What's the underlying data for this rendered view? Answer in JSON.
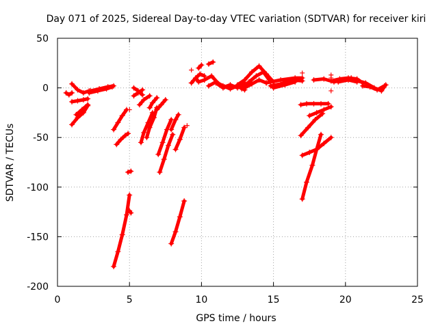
{
  "chart_data": {
    "type": "scatter",
    "title": "Day 071 of 2025, Sidereal Day-to-day VTEC variation (SDTVAR) for receiver kiri",
    "xlabel": "GPS time / hours",
    "ylabel": "SDTVAR / TECUs",
    "xlim": [
      0,
      25
    ],
    "ylim": [
      -200,
      50
    ],
    "x_ticks": [
      0,
      5,
      10,
      15,
      20,
      25
    ],
    "y_ticks": [
      -200,
      -150,
      -100,
      -50,
      0,
      50
    ],
    "grid": true,
    "marker": "plus",
    "series_color": "#ff0000",
    "segments": [
      {
        "x": [
          0.6,
          0.8,
          1.0
        ],
        "y": [
          -5,
          -7,
          -5
        ]
      },
      {
        "x": [
          1.0,
          1.4,
          1.8,
          2.2
        ],
        "y": [
          4,
          -2,
          -5,
          -3
        ]
      },
      {
        "x": [
          1.0,
          1.4,
          1.8,
          2.1
        ],
        "y": [
          -14,
          -13,
          -12,
          -11
        ]
      },
      {
        "x": [
          1.0,
          1.4,
          1.8,
          2.1
        ],
        "y": [
          -37,
          -30,
          -25,
          -18
        ]
      },
      {
        "x": [
          1.3,
          1.7,
          2.1
        ],
        "y": [
          -27,
          -22,
          -17
        ]
      },
      {
        "x": [
          2.2,
          2.8,
          3.4,
          3.8
        ],
        "y": [
          -5,
          -3,
          -1,
          1
        ]
      },
      {
        "x": [
          2.3,
          2.9,
          3.5,
          3.9
        ],
        "y": [
          -3,
          -1,
          1,
          2
        ]
      },
      {
        "x": [
          3.9,
          4.2,
          4.5,
          4.8
        ],
        "y": [
          -42,
          -35,
          -28,
          -22
        ]
      },
      {
        "x": [
          4.1,
          4.4,
          4.7,
          4.9
        ],
        "y": [
          -57,
          -52,
          -48,
          -46
        ]
      },
      {
        "x": [
          3.9,
          4.2,
          4.5,
          4.8,
          5.0
        ],
        "y": [
          -180,
          -165,
          -148,
          -128,
          -108
        ]
      },
      {
        "x": [
          4.9,
          5.1
        ],
        "y": [
          -85,
          -84
        ]
      },
      {
        "x": [
          5.0,
          5.1
        ],
        "y": [
          -124,
          -126
        ]
      },
      {
        "x": [
          5.3,
          5.6,
          5.9
        ],
        "y": [
          0,
          -3,
          -7
        ]
      },
      {
        "x": [
          5.3,
          5.6,
          5.9
        ],
        "y": [
          -8,
          -5,
          -2
        ]
      },
      {
        "x": [
          5.7,
          6.0,
          6.4
        ],
        "y": [
          -17,
          -12,
          -8
        ]
      },
      {
        "x": [
          5.8,
          6.0,
          6.3,
          6.6
        ],
        "y": [
          -55,
          -45,
          -35,
          -25
        ]
      },
      {
        "x": [
          6.2,
          6.4,
          6.7,
          6.9
        ],
        "y": [
          -50,
          -40,
          -30,
          -20
        ]
      },
      {
        "x": [
          6.4,
          6.6,
          6.9
        ],
        "y": [
          -20,
          -15,
          -10
        ]
      },
      {
        "x": [
          6.9,
          7.2,
          7.5
        ],
        "y": [
          -22,
          -17,
          -12
        ]
      },
      {
        "x": [
          7.0,
          7.3,
          7.6,
          7.9
        ],
        "y": [
          -67,
          -55,
          -42,
          -32
        ]
      },
      {
        "x": [
          7.1,
          7.4,
          7.7,
          8.0
        ],
        "y": [
          -85,
          -72,
          -58,
          -47
        ]
      },
      {
        "x": [
          7.9,
          8.2,
          8.4
        ],
        "y": [
          -42,
          -32,
          -27
        ]
      },
      {
        "x": [
          8.2,
          8.5,
          8.8
        ],
        "y": [
          -62,
          -52,
          -40
        ]
      },
      {
        "x": [
          7.9,
          8.2,
          8.5,
          8.8
        ],
        "y": [
          -157,
          -145,
          -130,
          -114
        ]
      },
      {
        "x": [
          9.3,
          9.6,
          9.8,
          10.2
        ],
        "y": [
          5,
          10,
          6,
          8
        ]
      },
      {
        "x": [
          9.6,
          9.9,
          10.2
        ],
        "y": [
          10,
          14,
          12
        ]
      },
      {
        "x": [
          9.8,
          10.0
        ],
        "y": [
          20,
          23
        ]
      },
      {
        "x": [
          10.5,
          10.8
        ],
        "y": [
          24,
          26
        ]
      },
      {
        "x": [
          10.2,
          10.7,
          11.2,
          11.6,
          12.0,
          12.5,
          13.0
        ],
        "y": [
          8,
          12,
          4,
          1,
          3,
          0,
          5
        ]
      },
      {
        "x": [
          10.5,
          11.0,
          11.5,
          12.0,
          12.5,
          13.0
        ],
        "y": [
          2,
          6,
          2,
          -1,
          2,
          -2
        ]
      },
      {
        "x": [
          11.0,
          11.5,
          12.0
        ],
        "y": [
          5,
          0,
          3
        ]
      },
      {
        "x": [
          12.5,
          13.0,
          13.5,
          14.0,
          14.5,
          15.0
        ],
        "y": [
          3,
          8,
          16,
          22,
          14,
          6
        ]
      },
      {
        "x": [
          12.8,
          13.3,
          13.8,
          14.3,
          14.8
        ],
        "y": [
          -1,
          6,
          12,
          16,
          6
        ]
      },
      {
        "x": [
          13.0,
          13.5,
          14.0,
          14.5
        ],
        "y": [
          0,
          4,
          8,
          5
        ]
      },
      {
        "x": [
          14.5,
          15.5,
          16.5,
          17.0
        ],
        "y": [
          5,
          8,
          10,
          10
        ]
      },
      {
        "x": [
          14.8,
          15.5,
          16.3,
          17.0
        ],
        "y": [
          2,
          4,
          8,
          7
        ]
      },
      {
        "x": [
          15.0,
          15.8,
          16.5
        ],
        "y": [
          0,
          3,
          6
        ]
      },
      {
        "x": [
          16.9,
          17.3,
          17.8,
          18.3,
          18.8
        ],
        "y": [
          -17,
          -16,
          -16,
          -16,
          -16
        ]
      },
      {
        "x": [
          16.9,
          17.4,
          17.9,
          18.4
        ],
        "y": [
          -48,
          -40,
          -32,
          -26
        ]
      },
      {
        "x": [
          17.0,
          17.5,
          18.0,
          18.5,
          19.0
        ],
        "y": [
          -68,
          -65,
          -62,
          -56,
          -50
        ]
      },
      {
        "x": [
          17.0,
          17.3,
          17.7,
          18.0,
          18.3
        ],
        "y": [
          -112,
          -95,
          -78,
          -62,
          -47
        ]
      },
      {
        "x": [
          17.5,
          18.0,
          18.5,
          19.0
        ],
        "y": [
          -28,
          -25,
          -22,
          -19
        ]
      },
      {
        "x": [
          17.8,
          18.5,
          19.2,
          19.8,
          20.4
        ],
        "y": [
          8,
          9,
          6,
          8,
          10
        ]
      },
      {
        "x": [
          19.0,
          19.6,
          20.2,
          20.8,
          21.2
        ],
        "y": [
          7,
          9,
          10,
          9,
          5
        ]
      },
      {
        "x": [
          19.5,
          20.2,
          20.8
        ],
        "y": [
          6,
          8,
          6
        ]
      },
      {
        "x": [
          20.8,
          21.4,
          22.0,
          22.5,
          22.8
        ],
        "y": [
          7,
          5,
          0,
          -3,
          3
        ]
      },
      {
        "x": [
          21.2,
          21.7,
          22.2,
          22.7
        ],
        "y": [
          2,
          1,
          -2,
          2
        ]
      }
    ],
    "isolated_points": {
      "x": [
        9.3,
        17.0,
        19.0,
        19.0,
        19.0,
        9.0,
        5.0
      ],
      "y": [
        18,
        15,
        13,
        -3,
        10,
        -38,
        -22
      ]
    }
  }
}
